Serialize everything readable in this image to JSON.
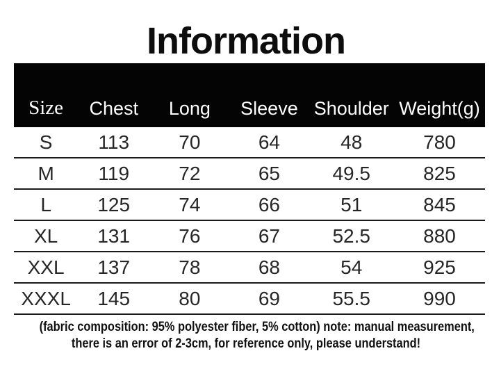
{
  "page": {
    "title": "Information"
  },
  "table": {
    "columns": [
      {
        "label": "Size"
      },
      {
        "label": "Chest"
      },
      {
        "label": "Long"
      },
      {
        "label": "Sleeve"
      },
      {
        "label": "Shoulder"
      },
      {
        "label": "Weight(g)"
      }
    ],
    "rows": [
      {
        "size": "S",
        "chest": "113",
        "long": "70",
        "sleeve": "64",
        "shoulder": "48",
        "weight": "780"
      },
      {
        "size": "M",
        "chest": "119",
        "long": "72",
        "sleeve": "65",
        "shoulder": "49.5",
        "weight": "825"
      },
      {
        "size": "L",
        "chest": "125",
        "long": "74",
        "sleeve": "66",
        "shoulder": "51",
        "weight": "845"
      },
      {
        "size": "XL",
        "chest": "131",
        "long": "76",
        "sleeve": "67",
        "shoulder": "52.5",
        "weight": "880"
      },
      {
        "size": "XXL",
        "chest": "137",
        "long": "78",
        "sleeve": "68",
        "shoulder": "54",
        "weight": "925"
      },
      {
        "size": "XXXL",
        "chest": "145",
        "long": "80",
        "sleeve": "69",
        "shoulder": "55.5",
        "weight": "990"
      }
    ]
  },
  "note": {
    "line1": "(fabric composition: 95% polyester fiber, 5% cotton) note: manual measurement,",
    "line2": "there is an error of 2-3cm, for reference only, please understand!"
  },
  "colors": {
    "background": "#ffffff",
    "header_bg": "#040404",
    "header_text": "#ffffff",
    "body_text": "#262626",
    "divider": "#191919"
  }
}
